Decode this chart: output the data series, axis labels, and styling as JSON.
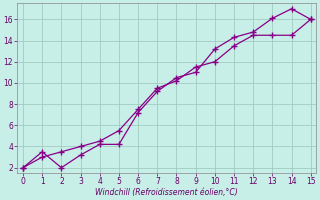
{
  "xlabel": "Windchill (Refroidissement éolien,°C)",
  "bg_color": "#c8eee8",
  "grid_color": "#a0ccc0",
  "line_color": "#880088",
  "line1_x": [
    0,
    1,
    2,
    3,
    4,
    5,
    6,
    7,
    8,
    9,
    10,
    11,
    12,
    13,
    14,
    15
  ],
  "line1_y": [
    2.0,
    3.5,
    2.0,
    3.2,
    4.2,
    4.2,
    7.2,
    9.2,
    10.5,
    11.0,
    13.2,
    14.3,
    14.8,
    16.1,
    17.0,
    16.0
  ],
  "line2_x": [
    0,
    1,
    2,
    3,
    4,
    5,
    6,
    7,
    8,
    9,
    10,
    11,
    12,
    13,
    14,
    15
  ],
  "line2_y": [
    2.0,
    3.0,
    3.5,
    4.0,
    4.5,
    5.5,
    7.5,
    9.5,
    10.2,
    11.5,
    12.0,
    13.5,
    14.5,
    14.5,
    14.5,
    16.0
  ],
  "xlim": [
    -0.3,
    15.3
  ],
  "ylim": [
    1.5,
    17.5
  ],
  "yticks": [
    2,
    4,
    6,
    8,
    10,
    12,
    14,
    16
  ],
  "xticks": [
    0,
    1,
    2,
    3,
    4,
    5,
    6,
    7,
    8,
    9,
    10,
    11,
    12,
    13,
    14,
    15
  ]
}
